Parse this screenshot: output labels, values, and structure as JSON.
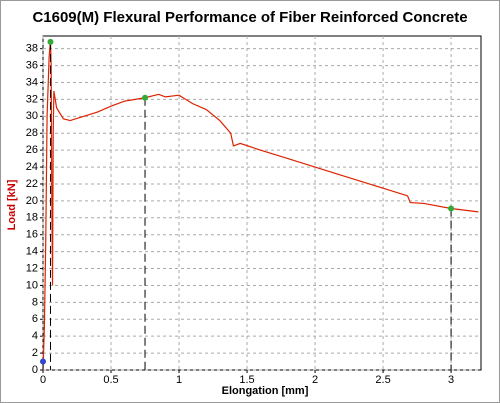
{
  "chart_data": {
    "type": "line",
    "title": "C1609(M) Flexural Performance of Fiber Reinforced Concrete",
    "x_label": "Elongation [mm]",
    "y_label": "Load [kN]",
    "y_label_color": "#cc0000",
    "xlim": [
      0,
      3.22
    ],
    "ylim": [
      0,
      39.5
    ],
    "xticks": [
      0,
      0.5,
      1,
      1.5,
      2,
      2.5,
      3
    ],
    "yticks": [
      0,
      2,
      4,
      6,
      8,
      10,
      12,
      14,
      16,
      18,
      20,
      22,
      24,
      26,
      28,
      30,
      32,
      34,
      36,
      38
    ],
    "grid": true,
    "series": [
      {
        "color": "#dd2200",
        "x": [
          0,
          0.01,
          0.02,
          0.03,
          0.045,
          0.055,
          0.06,
          0.065,
          0.07,
          0.075,
          0.08,
          0.1,
          0.15,
          0.2,
          0.3,
          0.4,
          0.5,
          0.6,
          0.75,
          0.85,
          0.9,
          1.0,
          1.1,
          1.2,
          1.3,
          1.38,
          1.4,
          1.45,
          1.6,
          1.8,
          2.0,
          2.2,
          2.5,
          2.68,
          2.7,
          2.8,
          3.0,
          3.2
        ],
        "values": [
          0,
          5,
          15,
          30,
          37,
          39,
          36,
          20,
          10,
          28,
          33,
          31,
          29.7,
          29.5,
          30,
          30.5,
          31.2,
          31.8,
          32.2,
          32.6,
          32.3,
          32.5,
          31.5,
          30.8,
          29.5,
          28,
          26.5,
          26.8,
          26,
          25,
          24,
          23,
          21.5,
          20.6,
          19.8,
          19.7,
          19.1,
          18.7
        ]
      }
    ],
    "markers": [
      {
        "color": "#33aa33",
        "x": [
          0.055,
          0.75,
          3.0
        ],
        "values": [
          38.8,
          32.2,
          19.1
        ]
      },
      {
        "color": "#3344cc",
        "x": [
          0
        ],
        "values": [
          1
        ]
      }
    ]
  }
}
